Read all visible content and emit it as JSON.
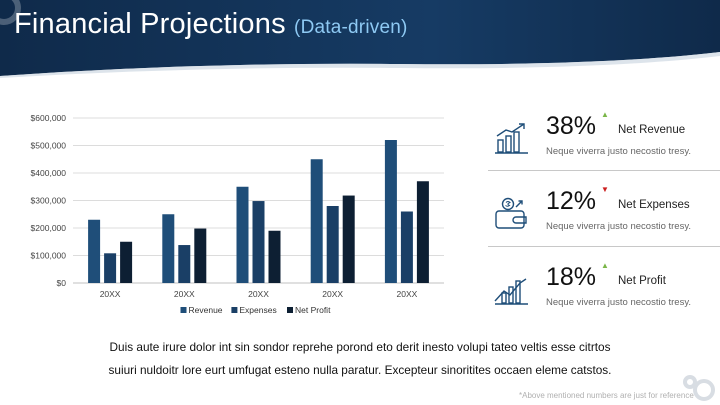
{
  "header": {
    "title": "Financial Projections",
    "subtitle": "(Data-driven)"
  },
  "chart_data": {
    "type": "bar",
    "categories": [
      "20XX",
      "20XX",
      "20XX",
      "20XX",
      "20XX"
    ],
    "series": [
      {
        "name": "Revenue",
        "color": "#1f4e79",
        "values": [
          230000,
          250000,
          350000,
          450000,
          520000
        ]
      },
      {
        "name": "Expenses",
        "color": "#1a3f66",
        "values": [
          108000,
          138000,
          298000,
          280000,
          260000
        ]
      },
      {
        "name": "Net Profit",
        "color": "#0d1f33",
        "values": [
          150000,
          198000,
          190000,
          318000,
          370000
        ]
      }
    ],
    "ylim": [
      0,
      600000
    ],
    "ytick_labels": [
      "$0",
      "$100,000",
      "$200,000",
      "$300,000",
      "$400,000",
      "$500,000",
      "$600,000"
    ],
    "grid": true,
    "legend": "bottom"
  },
  "kpis": [
    {
      "value": "38%",
      "label": "Net Revenue",
      "description": "Neque viverra justo necostio tresy.",
      "trend": "up",
      "icon": "bar-chart-growth-icon"
    },
    {
      "value": "12%",
      "label": "Net Expenses",
      "description": "Neque viverra justo necostio tresy.",
      "trend": "down",
      "icon": "wallet-dollar-icon"
    },
    {
      "value": "18%",
      "label": "Net Profit",
      "description": "Neque viverra justo necostio tresy.",
      "trend": "up",
      "icon": "bar-chart-trend-icon"
    }
  ],
  "trend_colors": {
    "up": "#7ab648",
    "down": "#cc1f1f"
  },
  "body_lines": [
    "Duis aute irure dolor int sin sondor reprehe porond eto derit inesto volupi tateo veltis esse citrtos",
    "suiuri nuldoitr lore eurt umfugat esteno nulla paratur. Excepteur sinoritites occaen eleme catstos."
  ],
  "footnote": "*Above mentioned numbers are just for reference",
  "colors": {
    "header_dark": "#0f2a4a",
    "header_light": "#1c4a7a",
    "accent": "#1f4e79"
  }
}
